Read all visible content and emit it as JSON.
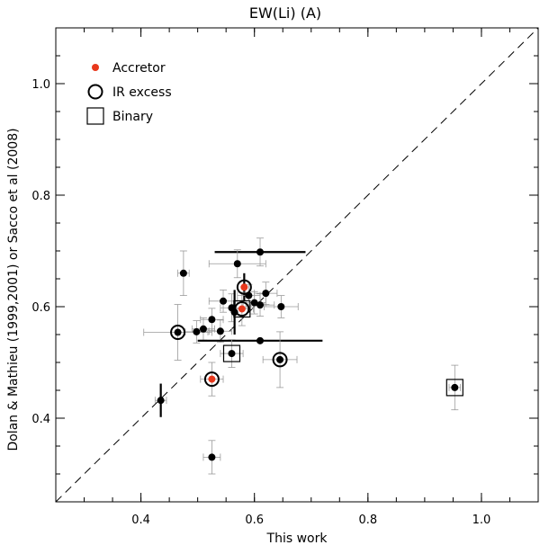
{
  "chart_data": {
    "type": "scatter",
    "title": "EW(Li) (A)",
    "xlabel": "This work",
    "ylabel": "Dolan & Mathieu (1999,2001) or Sacco et al (2008)",
    "xlim": [
      0.25,
      1.1
    ],
    "ylim": [
      0.25,
      1.1
    ],
    "x_ticks": [
      0.4,
      0.6,
      0.8,
      1.0
    ],
    "y_ticks": [
      0.4,
      0.6,
      0.8,
      1.0
    ],
    "x_tick_labels": [
      "0.4",
      "0.6",
      "0.8",
      "1.0"
    ],
    "y_tick_labels": [
      "0.4",
      "0.6",
      "0.8",
      "1.0"
    ],
    "reference_line": "y = x (dashed)",
    "legend": {
      "placement": "top-left",
      "entries": [
        {
          "label": "Accretor",
          "symbol": "filled-circle",
          "color": "#e8381c"
        },
        {
          "label": "IR excess",
          "symbol": "open-circle",
          "color": "#000000"
        },
        {
          "label": "Binary",
          "symbol": "open-square",
          "color": "#000000"
        }
      ]
    },
    "colors": {
      "accretor": "#e8381c",
      "point": "#000000",
      "error_bar": "#9a9a9a",
      "axis": "#000000"
    },
    "points": [
      {
        "x": 0.475,
        "y": 0.66,
        "xerr": 0.01,
        "yerr": 0.04
      },
      {
        "x": 0.61,
        "y": 0.698,
        "xerr": 0.08,
        "yerr": 0.025,
        "bold_xerr": true
      },
      {
        "x": 0.57,
        "y": 0.677,
        "xerr": 0.05,
        "yerr": 0.025
      },
      {
        "x": 0.582,
        "y": 0.635,
        "yerr": 0.025,
        "accretor": true,
        "ir_excess": true,
        "bold_yerr": true
      },
      {
        "x": 0.578,
        "y": 0.596,
        "xerr": 0.02,
        "yerr": 0.03,
        "accretor": true,
        "ir_excess": true,
        "binary": true
      },
      {
        "x": 0.62,
        "y": 0.624,
        "xerr": 0.02,
        "yerr": 0.02
      },
      {
        "x": 0.59,
        "y": 0.62,
        "xerr": 0.02,
        "yerr": 0.02
      },
      {
        "x": 0.545,
        "y": 0.61,
        "xerr": 0.025,
        "yerr": 0.02
      },
      {
        "x": 0.6,
        "y": 0.607,
        "xerr": 0.02,
        "yerr": 0.02
      },
      {
        "x": 0.61,
        "y": 0.603,
        "xerr": 0.025,
        "yerr": 0.02
      },
      {
        "x": 0.647,
        "y": 0.6,
        "xerr": 0.03,
        "yerr": 0.02
      },
      {
        "x": 0.56,
        "y": 0.598,
        "xerr": 0.02,
        "yerr": 0.025
      },
      {
        "x": 0.565,
        "y": 0.59,
        "yerr": 0.04,
        "bold_yerr": true
      },
      {
        "x": 0.525,
        "y": 0.577,
        "xerr": 0.02,
        "yerr": 0.02
      },
      {
        "x": 0.51,
        "y": 0.56,
        "xerr": 0.02,
        "yerr": 0.02
      },
      {
        "x": 0.498,
        "y": 0.555,
        "xerr": 0.02,
        "yerr": 0.02
      },
      {
        "x": 0.54,
        "y": 0.556,
        "xerr": 0.02,
        "yerr": 0.02
      },
      {
        "x": 0.465,
        "y": 0.554,
        "xerr": 0.06,
        "yerr": 0.05,
        "ir_excess": true
      },
      {
        "x": 0.61,
        "y": 0.539,
        "xerr": 0.11,
        "bold_xerr": true
      },
      {
        "x": 0.56,
        "y": 0.516,
        "xerr": 0.02,
        "yerr": 0.025,
        "binary": true
      },
      {
        "x": 0.645,
        "y": 0.505,
        "xerr": 0.03,
        "yerr": 0.05,
        "ir_excess": true
      },
      {
        "x": 0.525,
        "y": 0.47,
        "xerr": 0.02,
        "yerr": 0.03,
        "accretor": true,
        "ir_excess": true
      },
      {
        "x": 0.435,
        "y": 0.432,
        "xerr": 0.01,
        "yerr": 0.03,
        "bold_yerr": true
      },
      {
        "x": 0.525,
        "y": 0.33,
        "xerr": 0.015,
        "yerr": 0.03
      },
      {
        "x": 0.953,
        "y": 0.455,
        "xerr": 0.01,
        "yerr": 0.04,
        "binary": true
      }
    ]
  }
}
